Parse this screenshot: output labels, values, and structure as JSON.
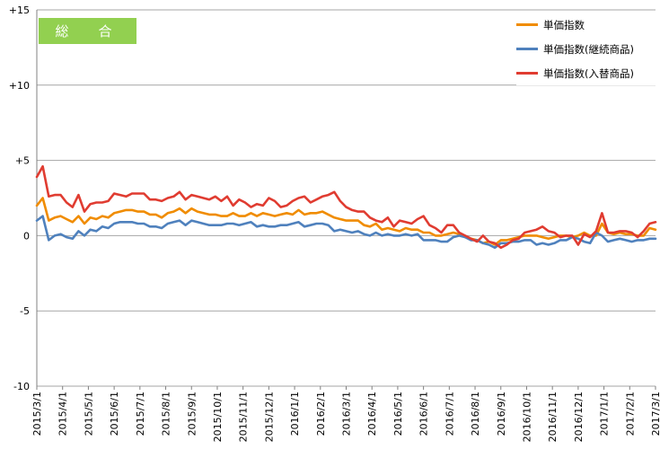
{
  "badge": {
    "label": "総　合"
  },
  "colors": {
    "axis": "#808080",
    "grid": "#a6a6a6",
    "background": "#ffffff",
    "badge": "#92d050"
  },
  "chart_data": {
    "type": "line",
    "title": "",
    "xlabel": "",
    "ylabel": "",
    "ylim": [
      -10,
      15
    ],
    "yticks": [
      {
        "value": 15,
        "label": "+15"
      },
      {
        "value": 10,
        "label": "+10"
      },
      {
        "value": 5,
        "label": "+5"
      },
      {
        "value": 0,
        "label": "0"
      },
      {
        "value": -5,
        "label": "-5"
      },
      {
        "value": -10,
        "label": "-10"
      }
    ],
    "grid": "horizontal",
    "legend_position": "top-right",
    "x_tick_labels": [
      "2015/3/1",
      "2015/4/1",
      "2015/5/1",
      "2015/6/1",
      "2015/7/1",
      "2015/8/1",
      "2015/9/1",
      "2015/10/1",
      "2015/11/1",
      "2015/12/1",
      "2016/1/1",
      "2016/2/1",
      "2016/3/1",
      "2016/4/1",
      "2016/5/1",
      "2016/6/1",
      "2016/7/1",
      "2016/8/1",
      "2016/9/1",
      "2016/10/1",
      "2016/11/1",
      "2016/12/1",
      "2017/1/1",
      "2017/2/1",
      "2017/3/1"
    ],
    "series": [
      {
        "name": "単価指数",
        "color": "#f08c00",
        "values": [
          2.0,
          2.5,
          1.0,
          1.2,
          1.3,
          1.1,
          0.9,
          1.3,
          0.8,
          1.2,
          1.1,
          1.3,
          1.2,
          1.5,
          1.6,
          1.7,
          1.7,
          1.6,
          1.6,
          1.4,
          1.4,
          1.2,
          1.5,
          1.6,
          1.8,
          1.5,
          1.8,
          1.6,
          1.5,
          1.4,
          1.4,
          1.3,
          1.3,
          1.5,
          1.3,
          1.3,
          1.5,
          1.3,
          1.5,
          1.4,
          1.3,
          1.4,
          1.5,
          1.4,
          1.7,
          1.4,
          1.5,
          1.5,
          1.6,
          1.4,
          1.2,
          1.1,
          1.0,
          1.0,
          1.0,
          0.7,
          0.6,
          0.8,
          0.4,
          0.5,
          0.4,
          0.3,
          0.5,
          0.4,
          0.4,
          0.2,
          0.2,
          0.0,
          0.0,
          0.1,
          0.2,
          0.1,
          -0.1,
          -0.2,
          -0.3,
          -0.5,
          -0.4,
          -0.6,
          -0.3,
          -0.3,
          -0.2,
          -0.1,
          0.0,
          0.0,
          0.0,
          -0.1,
          -0.2,
          -0.1,
          0.0,
          0.0,
          -0.1,
          0.0,
          0.2,
          0.0,
          0.0,
          0.8,
          0.2,
          0.1,
          0.2,
          0.1,
          0.1,
          0.0,
          0.0,
          0.5,
          0.4
        ]
      },
      {
        "name": "単価指数(継続商品)",
        "color": "#4f81bd",
        "values": [
          1.0,
          1.3,
          -0.3,
          0.0,
          0.1,
          -0.1,
          -0.2,
          0.3,
          0.0,
          0.4,
          0.3,
          0.6,
          0.5,
          0.8,
          0.9,
          0.9,
          0.9,
          0.8,
          0.8,
          0.6,
          0.6,
          0.5,
          0.8,
          0.9,
          1.0,
          0.7,
          1.0,
          0.9,
          0.8,
          0.7,
          0.7,
          0.7,
          0.8,
          0.8,
          0.7,
          0.8,
          0.9,
          0.6,
          0.7,
          0.6,
          0.6,
          0.7,
          0.7,
          0.8,
          0.9,
          0.6,
          0.7,
          0.8,
          0.8,
          0.7,
          0.3,
          0.4,
          0.3,
          0.2,
          0.3,
          0.1,
          0.0,
          0.2,
          0.0,
          0.1,
          0.0,
          0.0,
          0.1,
          0.0,
          0.1,
          -0.3,
          -0.3,
          -0.3,
          -0.4,
          -0.4,
          -0.1,
          0.0,
          -0.1,
          -0.3,
          -0.3,
          -0.5,
          -0.6,
          -0.8,
          -0.5,
          -0.5,
          -0.4,
          -0.4,
          -0.3,
          -0.3,
          -0.6,
          -0.5,
          -0.6,
          -0.5,
          -0.3,
          -0.3,
          -0.1,
          -0.2,
          -0.4,
          -0.5,
          0.2,
          0.0,
          -0.4,
          -0.3,
          -0.2,
          -0.3,
          -0.4,
          -0.3,
          -0.3,
          -0.2,
          -0.2
        ]
      },
      {
        "name": "単価指数(入替商品)",
        "color": "#e03c31",
        "values": [
          3.9,
          4.6,
          2.6,
          2.7,
          2.7,
          2.2,
          1.9,
          2.7,
          1.6,
          2.1,
          2.2,
          2.2,
          2.3,
          2.8,
          2.7,
          2.6,
          2.8,
          2.8,
          2.8,
          2.4,
          2.4,
          2.3,
          2.5,
          2.6,
          2.9,
          2.4,
          2.7,
          2.6,
          2.5,
          2.4,
          2.6,
          2.3,
          2.6,
          2.0,
          2.4,
          2.2,
          1.9,
          2.1,
          2.0,
          2.5,
          2.3,
          1.9,
          2.0,
          2.3,
          2.5,
          2.6,
          2.2,
          2.4,
          2.6,
          2.7,
          2.9,
          2.3,
          1.9,
          1.7,
          1.6,
          1.6,
          1.2,
          1.0,
          0.9,
          1.2,
          0.6,
          1.0,
          0.9,
          0.8,
          1.1,
          1.3,
          0.7,
          0.5,
          0.2,
          0.7,
          0.7,
          0.2,
          0.0,
          -0.2,
          -0.4,
          0.0,
          -0.4,
          -0.5,
          -0.8,
          -0.6,
          -0.3,
          -0.2,
          0.2,
          0.3,
          0.4,
          0.6,
          0.3,
          0.2,
          -0.1,
          0.0,
          0.0,
          -0.6,
          0.1,
          -0.1,
          0.3,
          1.5,
          0.2,
          0.2,
          0.3,
          0.3,
          0.2,
          -0.1,
          0.3,
          0.8,
          0.9
        ]
      }
    ]
  }
}
